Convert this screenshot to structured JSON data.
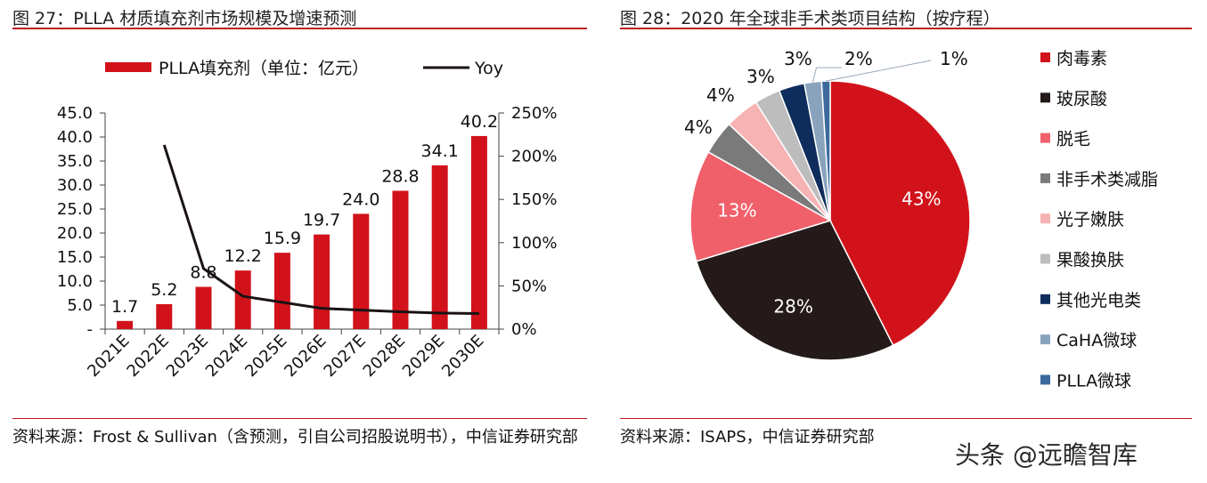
{
  "figure_left": {
    "title": "图 27：PLLA 材质填充剂市场规模及增速预测",
    "source": "资料来源：Frost & Sullivan（含预测，引自公司招股说明书），中信证券研究部"
  },
  "figure_right": {
    "title": "图 28：2020 年全球非手术类项目结构（按疗程）",
    "source": "资料来源：ISAPS，中信证券研究部"
  },
  "watermark": "头条 @远瞻智库",
  "colors": {
    "accent_red": "#c0141c",
    "bar_red": "#d2121b",
    "line_dark": "#1a1313"
  },
  "chart_data": [
    {
      "type": "bar",
      "categories": [
        "2021E",
        "2022E",
        "2023E",
        "2024E",
        "2025E",
        "2026E",
        "2027E",
        "2028E",
        "2029E",
        "2030E"
      ],
      "series": [
        {
          "name": "PLLA填充剂（单位：亿元）",
          "axis": "left",
          "values": [
            1.7,
            5.2,
            8.8,
            12.2,
            15.9,
            19.7,
            24.0,
            28.8,
            34.1,
            40.2
          ],
          "labels": [
            "1.7",
            "5.2",
            "8.8",
            "12.2",
            "15.9",
            "19.7",
            "24.0",
            "28.8",
            "34.1",
            "40.2"
          ]
        },
        {
          "name": "Yoy",
          "type": "line",
          "axis": "right",
          "values": [
            null,
            213.0,
            70.0,
            38.0,
            31.0,
            24.0,
            22.0,
            20.0,
            18.5,
            18.0
          ]
        }
      ],
      "y_left": {
        "ylim": [
          0,
          45
        ],
        "ticks": [
          0,
          5,
          10,
          15,
          20,
          25,
          30,
          35,
          40,
          45
        ],
        "tick_labels": [
          "-",
          "5.0",
          "10.0",
          "15.0",
          "20.0",
          "25.0",
          "30.0",
          "35.0",
          "40.0",
          "45.0"
        ]
      },
      "y_right": {
        "ylim": [
          0,
          250
        ],
        "ticks": [
          0,
          50,
          100,
          150,
          200,
          250
        ],
        "tick_labels": [
          "0%",
          "50%",
          "100%",
          "150%",
          "200%",
          "250%"
        ]
      },
      "grid": false,
      "legend": "top"
    },
    {
      "type": "pie",
      "categories": [
        "肉毒素",
        "玻尿酸",
        "脱毛",
        "非手术类减脂",
        "光子嫩肤",
        "果酸换肤",
        "其他光电类",
        "CaHA微球",
        "PLLA微球"
      ],
      "values": [
        43,
        28,
        13,
        4,
        4,
        3,
        3,
        2,
        1
      ],
      "labels": [
        "43%",
        "28%",
        "13%",
        "4%",
        "4%",
        "3%",
        "3%",
        "2%",
        "1%"
      ],
      "colors": [
        "#d2121b",
        "#241a1a",
        "#f0606a",
        "#7a7a7a",
        "#f6b3b3",
        "#bdbdbd",
        "#0f2d5c",
        "#8aa3bd",
        "#3d6a9c"
      ],
      "legend": "right"
    }
  ]
}
